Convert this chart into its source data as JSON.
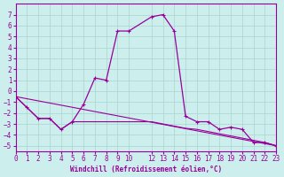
{
  "xlabel": "Windchill (Refroidissement éolien,°C)",
  "xlim": [
    0,
    23
  ],
  "ylim": [
    -5.5,
    8
  ],
  "yticks": [
    -5,
    -4,
    -3,
    -2,
    -1,
    0,
    1,
    2,
    3,
    4,
    5,
    6,
    7
  ],
  "xticks": [
    0,
    1,
    2,
    3,
    4,
    5,
    6,
    7,
    8,
    9,
    10,
    12,
    13,
    14,
    15,
    16,
    17,
    18,
    19,
    20,
    21,
    22,
    23
  ],
  "bg_color": "#cceeed",
  "grid_color": "#aad4d0",
  "line_color": "#990099",
  "curve1_x": [
    0,
    1,
    2,
    3,
    4,
    5,
    6,
    7,
    8,
    9,
    10,
    12,
    13,
    14,
    15,
    16,
    17,
    18,
    19,
    20,
    21,
    22,
    23
  ],
  "curve1_y": [
    -0.5,
    -1.5,
    -2.5,
    -2.5,
    -3.5,
    -2.8,
    -1.2,
    1.2,
    1.0,
    5.5,
    5.5,
    6.8,
    7.0,
    5.5,
    -2.3,
    -2.8,
    -2.8,
    -3.5,
    -3.3,
    -3.5,
    -4.7,
    -4.7,
    -5.0
  ],
  "curve2_x": [
    0,
    1,
    2,
    3,
    4,
    5,
    6,
    7,
    8,
    9,
    10,
    12,
    13,
    14,
    15,
    16,
    17,
    18,
    19,
    20,
    21,
    22,
    23
  ],
  "curve2_y": [
    -0.5,
    -1.5,
    -2.5,
    -2.5,
    -3.5,
    -2.8,
    -2.8,
    -2.8,
    -2.8,
    -2.8,
    -2.8,
    -2.8,
    -3.0,
    -3.2,
    -3.4,
    -3.5,
    -3.7,
    -3.9,
    -4.1,
    -4.3,
    -4.5,
    -4.7,
    -5.0
  ],
  "curve3_x": [
    0,
    23
  ],
  "curve3_y": [
    -0.5,
    -5.0
  ]
}
